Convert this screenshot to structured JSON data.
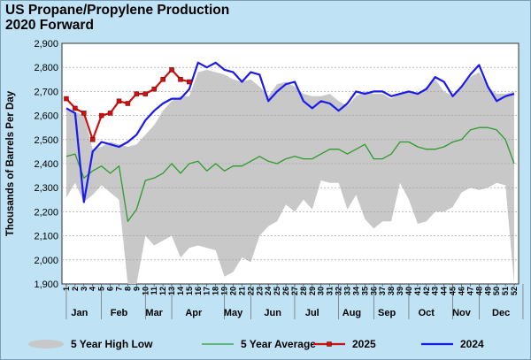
{
  "chart_data": {
    "type": "line",
    "title": [
      "US Propane/Propylene Production",
      "2020 Forward"
    ],
    "ylabel": "Thousands of Barrels Per Day",
    "xlabel": "",
    "ylim": [
      1900,
      2900
    ],
    "yticks": [
      "1,900",
      "2,000",
      "2,100",
      "2,200",
      "2,300",
      "2,400",
      "2,500",
      "2,600",
      "2,700",
      "2,800",
      "2,900"
    ],
    "x_weeks": [
      "1",
      "2",
      "3",
      "4",
      "5",
      "6",
      "7",
      "8",
      "9",
      "10",
      "11",
      "12",
      "13",
      "14",
      "15",
      "16",
      "17",
      "18",
      "19",
      "20",
      "21",
      "22",
      "23",
      "24",
      "25",
      "26",
      "27",
      "28",
      "29",
      "30",
      "31",
      "32",
      "33",
      "34",
      "35",
      "36",
      "37",
      "38",
      "39",
      "40",
      "41",
      "42",
      "43",
      "44",
      "45",
      "46",
      "47",
      "48",
      "49",
      "50",
      "51",
      "52"
    ],
    "months": [
      "Jan",
      "Feb",
      "Mar",
      "Apr",
      "May",
      "Jun",
      "Jul",
      "Aug",
      "Sep",
      "Oct",
      "Nov",
      "Dec"
    ],
    "month_week_centers": [
      2.5,
      7,
      11,
      15.5,
      20,
      24.5,
      29,
      33.5,
      37.5,
      42,
      46,
      50.5
    ],
    "legend": {
      "placement": "bottom"
    },
    "range_band": {
      "name": "5 Year High Low",
      "color": "#c8c8c8",
      "weeks": [
        1,
        2,
        3,
        4,
        5,
        6,
        7,
        8,
        9,
        10,
        11,
        12,
        13,
        14,
        15,
        16,
        17,
        18,
        19,
        20,
        21,
        22,
        23,
        24,
        25,
        26,
        27,
        28,
        29,
        30,
        31,
        32,
        33,
        34,
        35,
        36,
        37,
        38,
        39,
        40,
        41,
        42,
        43,
        44,
        45,
        46,
        47,
        48,
        49,
        50,
        51,
        52
      ],
      "high": [
        2630,
        2615,
        2600,
        2460,
        2470,
        2490,
        2480,
        2470,
        2480,
        2520,
        2560,
        2620,
        2660,
        2680,
        2680,
        2780,
        2790,
        2780,
        2770,
        2750,
        2740,
        2750,
        2720,
        2680,
        2730,
        2740,
        2720,
        2690,
        2680,
        2680,
        2690,
        2660,
        2640,
        2680,
        2700,
        2690,
        2690,
        2670,
        2690,
        2700,
        2690,
        2720,
        2750,
        2700,
        2680,
        2720,
        2760,
        2780,
        2720,
        2690,
        2690,
        2700
      ],
      "low": [
        2260,
        2320,
        2240,
        2270,
        2310,
        2280,
        2250,
        1900,
        1900,
        2100,
        2060,
        2080,
        2100,
        2010,
        2050,
        2060,
        2050,
        2040,
        1930,
        1950,
        2010,
        1990,
        2100,
        2140,
        2160,
        2230,
        2200,
        2250,
        2210,
        2330,
        2320,
        2320,
        2210,
        2270,
        2170,
        2130,
        2160,
        2160,
        2320,
        2250,
        2150,
        2160,
        2200,
        2200,
        2220,
        2280,
        2300,
        2290,
        2300,
        2320,
        2310,
        1900
      ]
    },
    "series": [
      {
        "name": "5 Year Average",
        "color": "#2e9a2e",
        "width": 1.3,
        "weeks": [
          1,
          2,
          3,
          4,
          5,
          6,
          7,
          8,
          9,
          10,
          11,
          12,
          13,
          14,
          15,
          16,
          17,
          18,
          19,
          20,
          21,
          22,
          23,
          24,
          25,
          26,
          27,
          28,
          29,
          30,
          31,
          32,
          33,
          34,
          35,
          36,
          37,
          38,
          39,
          40,
          41,
          42,
          43,
          44,
          45,
          46,
          47,
          48,
          49,
          50,
          51,
          52
        ],
        "values": [
          2430,
          2440,
          2340,
          2370,
          2390,
          2360,
          2390,
          2160,
          2210,
          2330,
          2340,
          2360,
          2400,
          2360,
          2400,
          2410,
          2370,
          2400,
          2370,
          2390,
          2390,
          2410,
          2430,
          2410,
          2400,
          2420,
          2430,
          2420,
          2420,
          2440,
          2460,
          2460,
          2440,
          2460,
          2480,
          2420,
          2420,
          2440,
          2490,
          2490,
          2470,
          2460,
          2460,
          2470,
          2490,
          2500,
          2540,
          2550,
          2550,
          2540,
          2500,
          2400
        ]
      },
      {
        "name": "2024",
        "color": "#1a1aee",
        "width": 2.2,
        "weeks": [
          1,
          2,
          3,
          4,
          5,
          6,
          7,
          8,
          9,
          10,
          11,
          12,
          13,
          14,
          15,
          16,
          17,
          18,
          19,
          20,
          21,
          22,
          23,
          24,
          25,
          26,
          27,
          28,
          29,
          30,
          31,
          32,
          33,
          34,
          35,
          36,
          37,
          38,
          39,
          40,
          41,
          42,
          43,
          44,
          45,
          46,
          47,
          48,
          49,
          50,
          51,
          52
        ],
        "values": [
          2630,
          2610,
          2240,
          2450,
          2490,
          2480,
          2470,
          2490,
          2520,
          2580,
          2620,
          2650,
          2670,
          2670,
          2710,
          2820,
          2800,
          2820,
          2790,
          2780,
          2740,
          2780,
          2770,
          2660,
          2700,
          2730,
          2740,
          2660,
          2630,
          2660,
          2650,
          2620,
          2650,
          2700,
          2690,
          2700,
          2700,
          2680,
          2690,
          2700,
          2690,
          2710,
          2760,
          2740,
          2680,
          2720,
          2770,
          2810,
          2720,
          2660,
          2680,
          2690
        ]
      },
      {
        "name": "2025",
        "color": "#cc1111",
        "width": 2.2,
        "marker": "square",
        "weeks": [
          1,
          2,
          3,
          4,
          5,
          6,
          7,
          8,
          9,
          10,
          11,
          12,
          13,
          14,
          15
        ],
        "values": [
          2670,
          2630,
          2610,
          2500,
          2600,
          2610,
          2660,
          2650,
          2690,
          2690,
          2710,
          2750,
          2790,
          2750,
          2740
        ]
      }
    ]
  }
}
